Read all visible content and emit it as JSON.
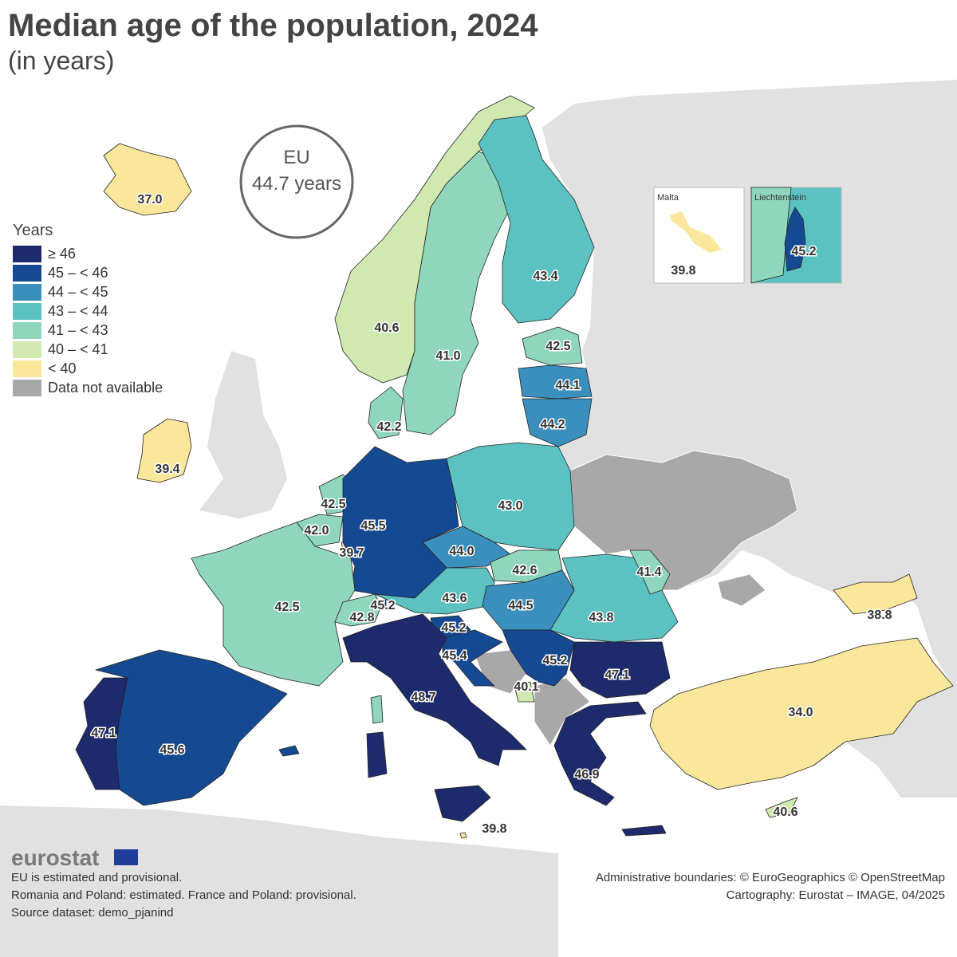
{
  "header": {
    "title": "Median age of the population, 2024",
    "subtitle": "(in years)"
  },
  "eu_badge": {
    "label": "EU",
    "value": "44.7 years"
  },
  "legend": {
    "title": "Years",
    "items": [
      {
        "label": "≥ 46",
        "color": "#1d2a6b"
      },
      {
        "label": "45 – < 46",
        "color": "#154a93"
      },
      {
        "label": "44 – < 45",
        "color": "#3a8fbd"
      },
      {
        "label": "43 – < 44",
        "color": "#5cc1c1"
      },
      {
        "label": "41 – < 43",
        "color": "#8fd6bd"
      },
      {
        "label": "40 – < 41",
        "color": "#d0e9b1"
      },
      {
        "label": "< 40",
        "color": "#fbe79b"
      },
      {
        "label": "Data not available",
        "color": "#a8a8a8"
      }
    ]
  },
  "regions": [
    {
      "value": "37.0",
      "color": "#fbe79b"
    },
    {
      "value": "39.4",
      "color": "#fbe79b"
    },
    {
      "value": "40.6",
      "color": "#d0e9b1"
    },
    {
      "value": "41.0",
      "color": "#8fd6bd"
    },
    {
      "value": "43.4",
      "color": "#5cc1c1"
    },
    {
      "value": "42.5",
      "color": "#8fd6bd"
    },
    {
      "value": "44.1",
      "color": "#3a8fbd"
    },
    {
      "value": "44.2",
      "color": "#3a8fbd"
    },
    {
      "value": "42.2",
      "color": "#8fd6bd"
    },
    {
      "value": "42.5",
      "color": "#8fd6bd"
    },
    {
      "value": "42.0",
      "color": "#8fd6bd"
    },
    {
      "value": "39.7",
      "color": "#fbe79b"
    },
    {
      "value": "45.5",
      "color": "#154a93"
    },
    {
      "value": "43.0",
      "color": "#5cc1c1"
    },
    {
      "value": "44.0",
      "color": "#3a8fbd"
    },
    {
      "value": "42.6",
      "color": "#8fd6bd"
    },
    {
      "value": "43.6",
      "color": "#5cc1c1"
    },
    {
      "value": "44.5",
      "color": "#3a8fbd"
    },
    {
      "value": "43.8",
      "color": "#5cc1c1"
    },
    {
      "value": "41.4",
      "color": "#8fd6bd"
    },
    {
      "value": "42.5",
      "color": "#8fd6bd"
    },
    {
      "value": "42.8",
      "color": "#8fd6bd"
    },
    {
      "value": "45.2",
      "color": "#154a93"
    },
    {
      "value": "45.2",
      "color": "#154a93"
    },
    {
      "value": "45.4",
      "color": "#154a93"
    },
    {
      "value": "45.2",
      "color": "#154a93"
    },
    {
      "value": "47.1",
      "color": "#1d2a6b"
    },
    {
      "value": "40.1",
      "color": "#d0e9b1"
    },
    {
      "value": "48.7",
      "color": "#1d2a6b"
    },
    {
      "value": "47.1",
      "color": "#1d2a6b"
    },
    {
      "value": "45.6",
      "color": "#154a93"
    },
    {
      "value": "46.9",
      "color": "#1d2a6b"
    },
    {
      "value": "34.0",
      "color": "#fbe79b"
    },
    {
      "value": "38.8",
      "color": "#fbe79b"
    },
    {
      "value": "40.6",
      "color": "#d0e9b1"
    },
    {
      "value": "39.8",
      "color": "#fbe79b"
    }
  ],
  "insets": [
    {
      "name": "Malta",
      "value": "39.8",
      "color": "#fbe79b"
    },
    {
      "name": "Liechtenstein",
      "value": "45.2",
      "color": "#154a93"
    }
  ],
  "footer": {
    "brand": "eurostat",
    "notes": [
      "EU is estimated and provisional.",
      "Romania and Poland: estimated. France and Poland: provisional.",
      "Source dataset: demo_pjanind"
    ],
    "credits": [
      "Administrative boundaries: © EuroGeographics © OpenStreetMap",
      "Cartography: Eurostat – IMAGE, 04/2025"
    ]
  }
}
